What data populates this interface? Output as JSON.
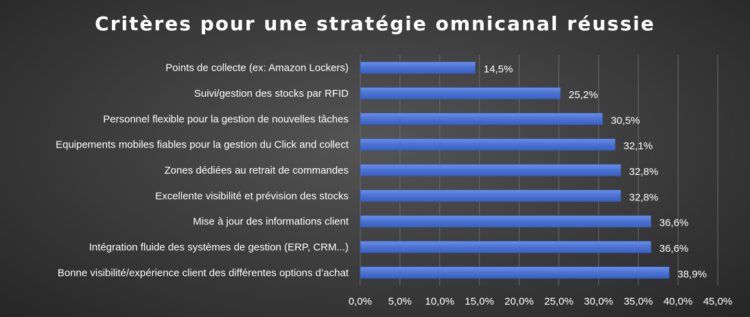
{
  "chart_data": {
    "type": "bar",
    "orientation": "horizontal",
    "title": "Critères pour une stratégie omnicanal réussie",
    "categories": [
      "Points de collecte (ex: Amazon Lockers)",
      "Suivi/gestion des stocks par RFID",
      "Personnel flexible pour la gestion de nouvelles tâches",
      "Equipements mobiles fiables pour la gestion du Click and collect",
      "Zones dédiées au retrait de commandes",
      "Excellente visibilité et prévision des stocks",
      "Mise à jour des informations client",
      "Intégration fluide des systèmes de gestion (ERP, CRM...)",
      "Bonne visibilité/expérience  client des différentes options d’achat"
    ],
    "values": [
      14.5,
      25.2,
      30.5,
      32.1,
      32.8,
      32.8,
      36.6,
      36.6,
      38.9
    ],
    "value_labels": [
      "14,5%",
      "25,2%",
      "30,5%",
      "32,1%",
      "32,8%",
      "32,8%",
      "36,6%",
      "36,6%",
      "38,9%"
    ],
    "xticks": [
      "0,0%",
      "5,0%",
      "10,0%",
      "15,0%",
      "20,0%",
      "25,0%",
      "30,0%",
      "35,0%",
      "40,0%",
      "45,0%"
    ],
    "xlim": [
      0,
      45
    ],
    "grid": true,
    "bar_color": "#4a72d4",
    "background_color": "#3f3f3f"
  }
}
